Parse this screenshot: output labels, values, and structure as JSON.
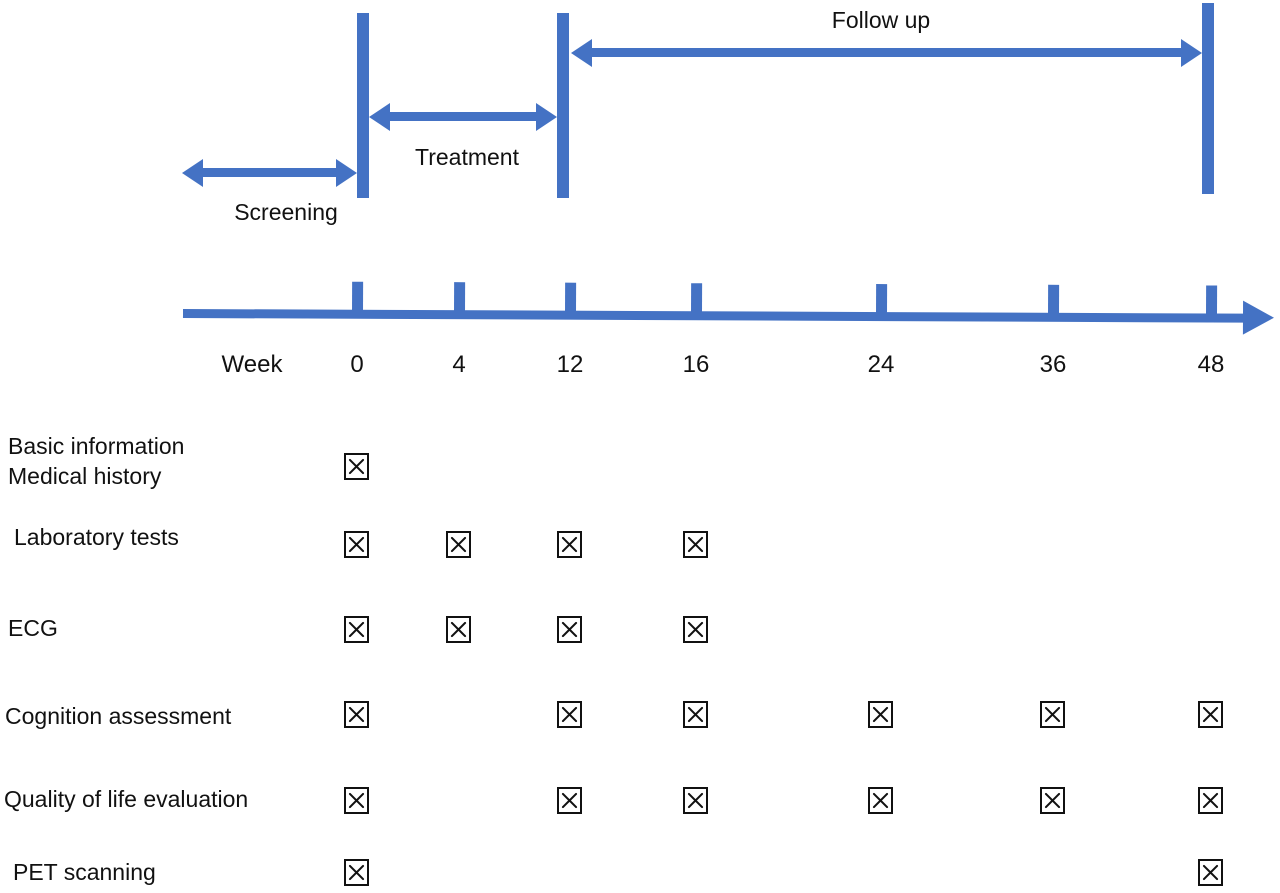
{
  "colors": {
    "accent_blue": "#4472C4",
    "text_black": "#111111",
    "background": "#ffffff"
  },
  "phases": [
    {
      "id": "screening",
      "label": "Screening"
    },
    {
      "id": "treatment",
      "label": "Treatment"
    },
    {
      "id": "follow_up",
      "label": "Follow up"
    }
  ],
  "timeline": {
    "axis_label": "Week",
    "tick_labels": [
      "0",
      "4",
      "12",
      "16",
      "24",
      "36",
      "48"
    ]
  },
  "icons": {
    "crossed_checkbox": "square box with X mark",
    "double_headed_arrow": "blue horizontal double-headed arrow",
    "axis_arrowhead": "blue right-pointing arrowhead",
    "milestone_bar": "blue vertical bar"
  },
  "assessments": [
    {
      "label_lines": [
        "Basic information",
        "Medical history"
      ],
      "checked_weeks": [
        "0"
      ]
    },
    {
      "label_lines": [
        "Laboratory tests"
      ],
      "checked_weeks": [
        "0",
        "4",
        "12",
        "16"
      ]
    },
    {
      "label_lines": [
        "ECG"
      ],
      "checked_weeks": [
        "0",
        "4",
        "12",
        "16"
      ]
    },
    {
      "label_lines": [
        "Cognition assessment"
      ],
      "checked_weeks": [
        "0",
        "12",
        "16",
        "24",
        "36",
        "48"
      ]
    },
    {
      "label_lines": [
        "Quality of life evaluation"
      ],
      "checked_weeks": [
        "0",
        "12",
        "16",
        "24",
        "36",
        "48"
      ]
    },
    {
      "label_lines": [
        "PET scanning"
      ],
      "checked_weeks": [
        "0",
        "48"
      ]
    }
  ]
}
